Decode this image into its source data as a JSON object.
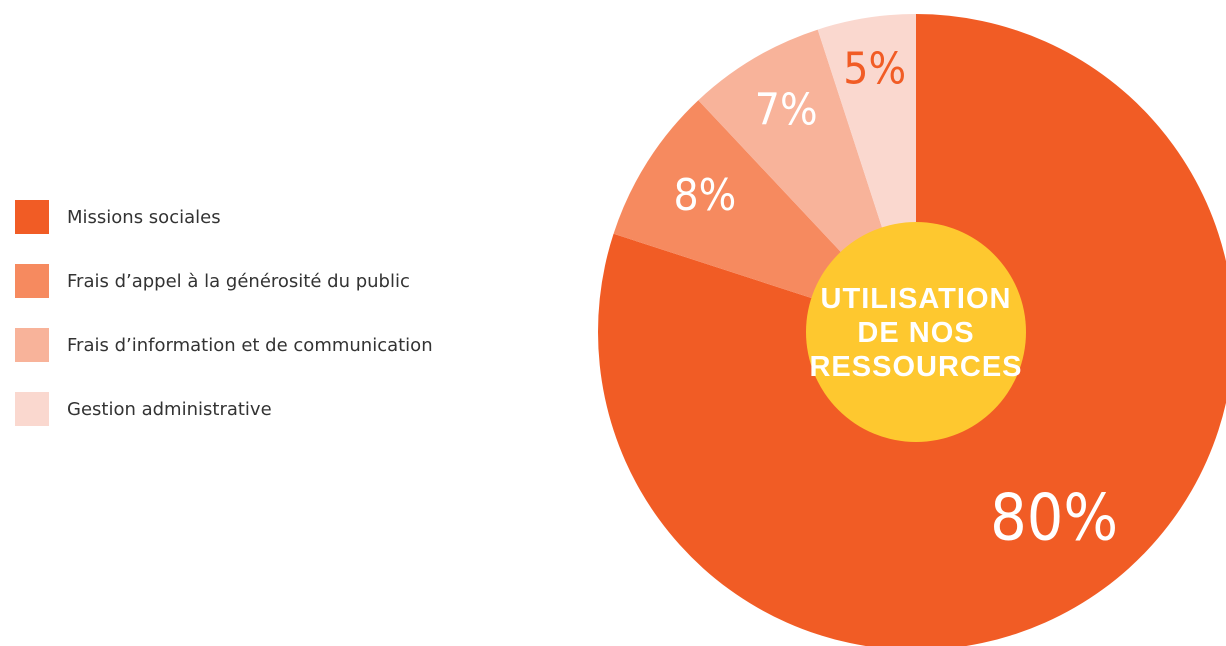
{
  "chart_data": {
    "type": "pie",
    "center_label": [
      "UTILISATION",
      "DE NOS",
      "RESSOURCES"
    ],
    "slices": [
      {
        "label": "Missions sociales",
        "value": 80,
        "display": "80%",
        "color": "#f15c25",
        "text_color": "#ffffff"
      },
      {
        "label": "Frais d’appel à la générosité du public",
        "value": 8,
        "display": "8%",
        "color": "#f68a5f",
        "text_color": "#ffffff"
      },
      {
        "label": "Frais d’information et de communication",
        "value": 7,
        "display": "7%",
        "color": "#f8b39a",
        "text_color": "#ffffff"
      },
      {
        "label": "Gestion administrative",
        "value": 5,
        "display": "5%",
        "color": "#fad8cf",
        "text_color": "#f15c25"
      }
    ],
    "center_color": "#fec82f",
    "legend_position": "left"
  }
}
